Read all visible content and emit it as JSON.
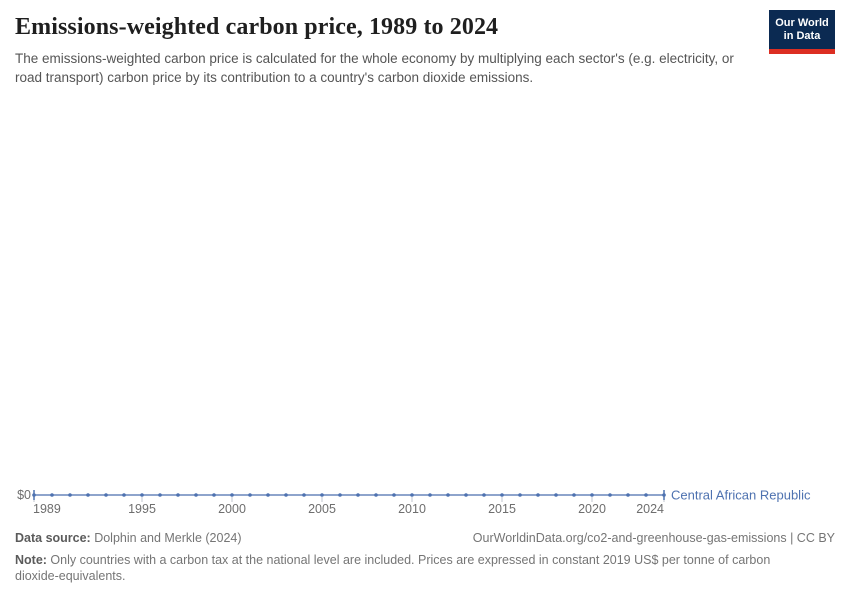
{
  "header": {
    "title": "Emissions-weighted carbon price, 1989 to 2024",
    "subtitle": "The emissions-weighted carbon price is calculated for the whole economy by multiplying each sector's (e.g. electricity, or road transport) carbon price by its contribution to a country's carbon dioxide emissions."
  },
  "logo": {
    "line1": "Our World",
    "line2": "in Data",
    "bg_color": "#0b2a52",
    "stripe_color": "#dc2e22"
  },
  "chart_data": {
    "type": "line",
    "title": "Emissions-weighted carbon price, 1989 to 2024",
    "xlabel": "",
    "ylabel": "",
    "xlim": [
      1989,
      2024
    ],
    "ylim": [
      0,
      0
    ],
    "grid": false,
    "legend_position": "end-of-line",
    "x_ticks": [
      1989,
      1995,
      2000,
      2005,
      2010,
      2015,
      2020,
      2024
    ],
    "y_axis": {
      "tick_label": "$0",
      "value": 0
    },
    "series": [
      {
        "name": "Central African Republic",
        "color": "#4e72b0",
        "x": [
          1989,
          1990,
          1991,
          1992,
          1993,
          1994,
          1995,
          1996,
          1997,
          1998,
          1999,
          2000,
          2001,
          2002,
          2003,
          2004,
          2005,
          2006,
          2007,
          2008,
          2009,
          2010,
          2011,
          2012,
          2013,
          2014,
          2015,
          2016,
          2017,
          2018,
          2019,
          2020,
          2021,
          2022,
          2023,
          2024
        ],
        "values": [
          0,
          0,
          0,
          0,
          0,
          0,
          0,
          0,
          0,
          0,
          0,
          0,
          0,
          0,
          0,
          0,
          0,
          0,
          0,
          0,
          0,
          0,
          0,
          0,
          0,
          0,
          0,
          0,
          0,
          0,
          0,
          0,
          0,
          0,
          0,
          0
        ]
      }
    ]
  },
  "footer": {
    "datasource_label": "Data source:",
    "datasource_value": " Dolphin and Merkle (2024)",
    "attribution": "OurWorldinData.org/co2-and-greenhouse-gas-emissions | CC BY",
    "note_label": "Note:",
    "note_value": " Only countries with a carbon tax at the national level are included. Prices are expressed in constant 2019 US$ per tonne of carbon dioxide-equivalents."
  }
}
